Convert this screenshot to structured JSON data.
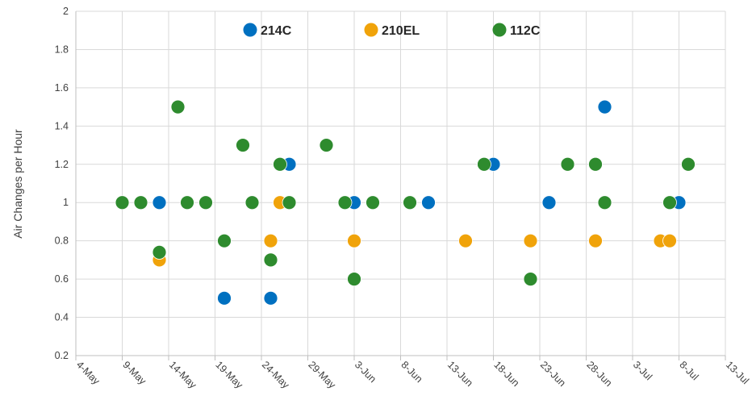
{
  "chart_data": {
    "type": "scatter",
    "ylabel": "Air Changes per Hour",
    "xlabel": "",
    "title": "",
    "x_axis": {
      "type": "date",
      "min": "2020-05-04",
      "max": "2020-07-13",
      "tick_labels": [
        "4-May",
        "9-May",
        "14-May",
        "19-May",
        "24-May",
        "29-May",
        "3-Jun",
        "8-Jun",
        "13-Jun",
        "18-Jun",
        "23-Jun",
        "28-Jun",
        "3-Jul",
        "8-Jul",
        "13-Jul"
      ]
    },
    "y_axis": {
      "min": 0.2,
      "max": 2,
      "tick_labels": [
        "0.2",
        "0.4",
        "0.6",
        "0.8",
        "1",
        "1.2",
        "1.4",
        "1.6",
        "1.8",
        "2"
      ]
    },
    "grid": true,
    "legend_position": "top",
    "series": [
      {
        "name": "214C",
        "color": "#0070C0",
        "points": [
          {
            "x": "2020-05-13",
            "y": 1
          },
          {
            "x": "2020-05-20",
            "y": 0.5
          },
          {
            "x": "2020-05-25",
            "y": 0.5
          },
          {
            "x": "2020-05-27",
            "y": 1.2
          },
          {
            "x": "2020-06-03",
            "y": 1
          },
          {
            "x": "2020-06-11",
            "y": 1
          },
          {
            "x": "2020-06-18",
            "y": 1.2
          },
          {
            "x": "2020-06-24",
            "y": 1
          },
          {
            "x": "2020-06-30",
            "y": 1.5
          },
          {
            "x": "2020-07-08",
            "y": 1
          }
        ]
      },
      {
        "name": "210EL",
        "color": "#F0A30A",
        "points": [
          {
            "x": "2020-05-13",
            "y": 0.7
          },
          {
            "x": "2020-05-25",
            "y": 0.8
          },
          {
            "x": "2020-05-26",
            "y": 1
          },
          {
            "x": "2020-06-03",
            "y": 0.8
          },
          {
            "x": "2020-06-15",
            "y": 0.8
          },
          {
            "x": "2020-06-22",
            "y": 0.8
          },
          {
            "x": "2020-06-29",
            "y": 0.8
          },
          {
            "x": "2020-07-06",
            "y": 0.8
          },
          {
            "x": "2020-07-07",
            "y": 0.8
          }
        ]
      },
      {
        "name": "112C",
        "color": "#2E8B2E",
        "points": [
          {
            "x": "2020-05-09",
            "y": 1
          },
          {
            "x": "2020-05-11",
            "y": 1
          },
          {
            "x": "2020-05-13",
            "y": 0.74
          },
          {
            "x": "2020-05-15",
            "y": 1.5
          },
          {
            "x": "2020-05-16",
            "y": 1
          },
          {
            "x": "2020-05-18",
            "y": 1
          },
          {
            "x": "2020-05-20",
            "y": 0.8
          },
          {
            "x": "2020-05-22",
            "y": 1.3
          },
          {
            "x": "2020-05-23",
            "y": 1
          },
          {
            "x": "2020-05-25",
            "y": 0.7
          },
          {
            "x": "2020-05-26",
            "y": 1.2
          },
          {
            "x": "2020-05-27",
            "y": 1
          },
          {
            "x": "2020-05-31",
            "y": 1.3
          },
          {
            "x": "2020-06-02",
            "y": 1
          },
          {
            "x": "2020-06-03",
            "y": 0.6
          },
          {
            "x": "2020-06-05",
            "y": 1
          },
          {
            "x": "2020-06-09",
            "y": 1
          },
          {
            "x": "2020-06-17",
            "y": 1.2
          },
          {
            "x": "2020-06-22",
            "y": 0.6
          },
          {
            "x": "2020-06-26",
            "y": 1.2
          },
          {
            "x": "2020-06-29",
            "y": 1.2
          },
          {
            "x": "2020-06-30",
            "y": 1
          },
          {
            "x": "2020-07-07",
            "y": 1
          },
          {
            "x": "2020-07-09",
            "y": 1.2
          }
        ]
      }
    ]
  }
}
